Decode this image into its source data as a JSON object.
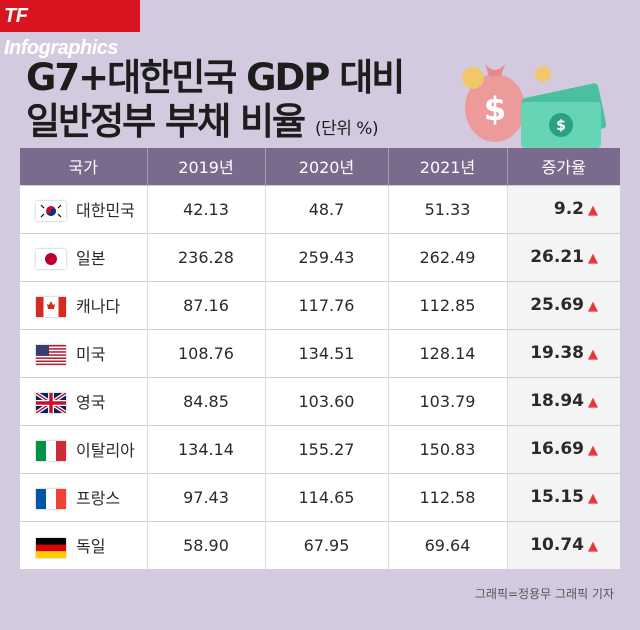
{
  "brand": "TF Infographics",
  "title": {
    "line1": "G7+대한민국 GDP 대비",
    "line2": "일반정부 부채 비율",
    "unit": "(단위 %)"
  },
  "colors": {
    "header": "#7a6a8c",
    "background": "#d4cadf",
    "brand": "#d7141f",
    "arrow": "#e8393a"
  },
  "chart_data": {
    "type": "table",
    "columns": [
      "국가",
      "2019년",
      "2020년",
      "2021년",
      "증가율"
    ],
    "rows": [
      {
        "flag": "korea",
        "country": "대한민국",
        "y2019": "42.13",
        "y2020": "48.7",
        "y2021": "51.33",
        "rate": "9.2"
      },
      {
        "flag": "japan",
        "country": "일본",
        "y2019": "236.28",
        "y2020": "259.43",
        "y2021": "262.49",
        "rate": "26.21"
      },
      {
        "flag": "canada",
        "country": "캐나다",
        "y2019": "87.16",
        "y2020": "117.76",
        "y2021": "112.85",
        "rate": "25.69"
      },
      {
        "flag": "usa",
        "country": "미국",
        "y2019": "108.76",
        "y2020": "134.51",
        "y2021": "128.14",
        "rate": "19.38"
      },
      {
        "flag": "uk",
        "country": "영국",
        "y2019": "84.85",
        "y2020": "103.60",
        "y2021": "103.79",
        "rate": "18.94"
      },
      {
        "flag": "italy",
        "country": "이탈리아",
        "y2019": "134.14",
        "y2020": "155.27",
        "y2021": "150.83",
        "rate": "16.69"
      },
      {
        "flag": "france",
        "country": "프랑스",
        "y2019": "97.43",
        "y2020": "114.65",
        "y2021": "112.58",
        "rate": "15.15"
      },
      {
        "flag": "germany",
        "country": "독일",
        "y2019": "58.90",
        "y2020": "67.95",
        "y2021": "69.64",
        "rate": "10.74"
      }
    ]
  },
  "credit": "그래픽=정용무 그래픽 기자"
}
